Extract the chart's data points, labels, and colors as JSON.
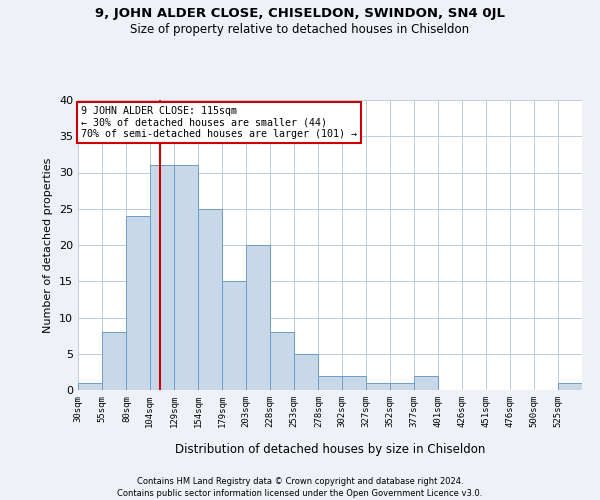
{
  "title": "9, JOHN ALDER CLOSE, CHISELDON, SWINDON, SN4 0JL",
  "subtitle": "Size of property relative to detached houses in Chiseldon",
  "xlabel": "Distribution of detached houses by size in Chiseldon",
  "ylabel": "Number of detached properties",
  "bin_edges": [
    30,
    55,
    80,
    104,
    129,
    154,
    179,
    203,
    228,
    253,
    278,
    302,
    327,
    352,
    377,
    401,
    426,
    451,
    476,
    500,
    525,
    550
  ],
  "bin_labels": [
    "30sqm",
    "55sqm",
    "80sqm",
    "104sqm",
    "129sqm",
    "154sqm",
    "179sqm",
    "203sqm",
    "228sqm",
    "253sqm",
    "278sqm",
    "302sqm",
    "327sqm",
    "352sqm",
    "377sqm",
    "401sqm",
    "426sqm",
    "451sqm",
    "476sqm",
    "500sqm",
    "525sqm"
  ],
  "counts": [
    1,
    8,
    24,
    31,
    31,
    25,
    15,
    20,
    8,
    5,
    2,
    2,
    1,
    1,
    2,
    0,
    0,
    0,
    0,
    0,
    1
  ],
  "bar_color": "#c8d8e8",
  "bar_edge_color": "#6b9ec8",
  "vline_x": 115,
  "vline_color": "#cc0000",
  "annotation_line1": "9 JOHN ALDER CLOSE: 115sqm",
  "annotation_line2": "← 30% of detached houses are smaller (44)",
  "annotation_line3": "70% of semi-detached houses are larger (101) →",
  "annotation_box_color": "#ffffff",
  "annotation_box_edge_color": "#cc0000",
  "ylim": [
    0,
    40
  ],
  "yticks": [
    0,
    5,
    10,
    15,
    20,
    25,
    30,
    35,
    40
  ],
  "footer_line1": "Contains HM Land Registry data © Crown copyright and database right 2024.",
  "footer_line2": "Contains public sector information licensed under the Open Government Licence v3.0.",
  "bg_color": "#eef2f7",
  "plot_bg_color": "#ffffff",
  "grid_color": "#c0ccda"
}
